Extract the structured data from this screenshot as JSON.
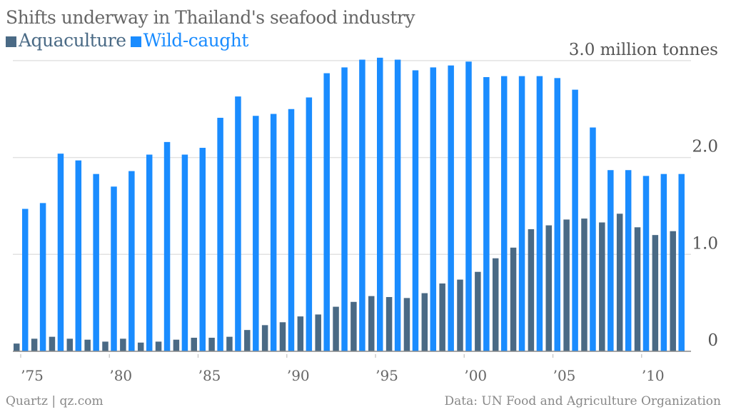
{
  "chart_data": {
    "type": "bar",
    "title": "Shifts underway in Thailand's seafood industry",
    "xlabel": "",
    "ylabel": "million tonnes",
    "ylim": [
      0,
      3.0
    ],
    "yticks": [
      {
        "value": 0,
        "label": "0"
      },
      {
        "value": 1,
        "label": "1.0"
      },
      {
        "value": 2,
        "label": "2.0"
      },
      {
        "value": 3,
        "label": "3.0 million tonnes"
      }
    ],
    "xticks": [
      {
        "year": 1975,
        "label": "’75"
      },
      {
        "year": 1980,
        "label": "’80"
      },
      {
        "year": 1985,
        "label": "’85"
      },
      {
        "year": 1990,
        "label": "’90"
      },
      {
        "year": 1995,
        "label": "’95"
      },
      {
        "year": 2000,
        "label": "’00"
      },
      {
        "year": 2005,
        "label": "’05"
      },
      {
        "year": 2010,
        "label": "’10"
      }
    ],
    "categories": [
      1975,
      1976,
      1977,
      1978,
      1979,
      1980,
      1981,
      1982,
      1983,
      1984,
      1985,
      1986,
      1987,
      1988,
      1989,
      1990,
      1991,
      1992,
      1993,
      1994,
      1995,
      1996,
      1997,
      1998,
      1999,
      2000,
      2001,
      2002,
      2003,
      2004,
      2005,
      2006,
      2007,
      2008,
      2009,
      2010,
      2011,
      2012
    ],
    "series": [
      {
        "name": "Aquaculture",
        "color": "#4a6a85",
        "values": [
          0.08,
          0.13,
          0.15,
          0.13,
          0.12,
          0.1,
          0.13,
          0.09,
          0.1,
          0.12,
          0.14,
          0.14,
          0.15,
          0.22,
          0.27,
          0.3,
          0.36,
          0.38,
          0.46,
          0.51,
          0.57,
          0.56,
          0.55,
          0.6,
          0.7,
          0.74,
          0.82,
          0.96,
          1.07,
          1.26,
          1.3,
          1.36,
          1.37,
          1.33,
          1.42,
          1.28,
          1.2,
          1.24
        ]
      },
      {
        "name": "Wild-caught",
        "color": "#1a8cff",
        "values": [
          1.47,
          1.53,
          2.04,
          1.97,
          1.83,
          1.7,
          1.86,
          2.03,
          2.16,
          2.03,
          2.1,
          2.41,
          2.63,
          2.43,
          2.45,
          2.5,
          2.62,
          2.87,
          2.93,
          3.01,
          3.03,
          3.01,
          2.9,
          2.93,
          2.95,
          2.99,
          2.83,
          2.84,
          2.84,
          2.84,
          2.82,
          2.7,
          2.31,
          1.87,
          1.87,
          1.81,
          1.83,
          1.83
        ]
      }
    ],
    "legend": "top-left",
    "grid": true
  },
  "footer": {
    "source_left": "Quartz | qz.com",
    "source_right": "Data: UN Food and Agriculture Organization"
  }
}
